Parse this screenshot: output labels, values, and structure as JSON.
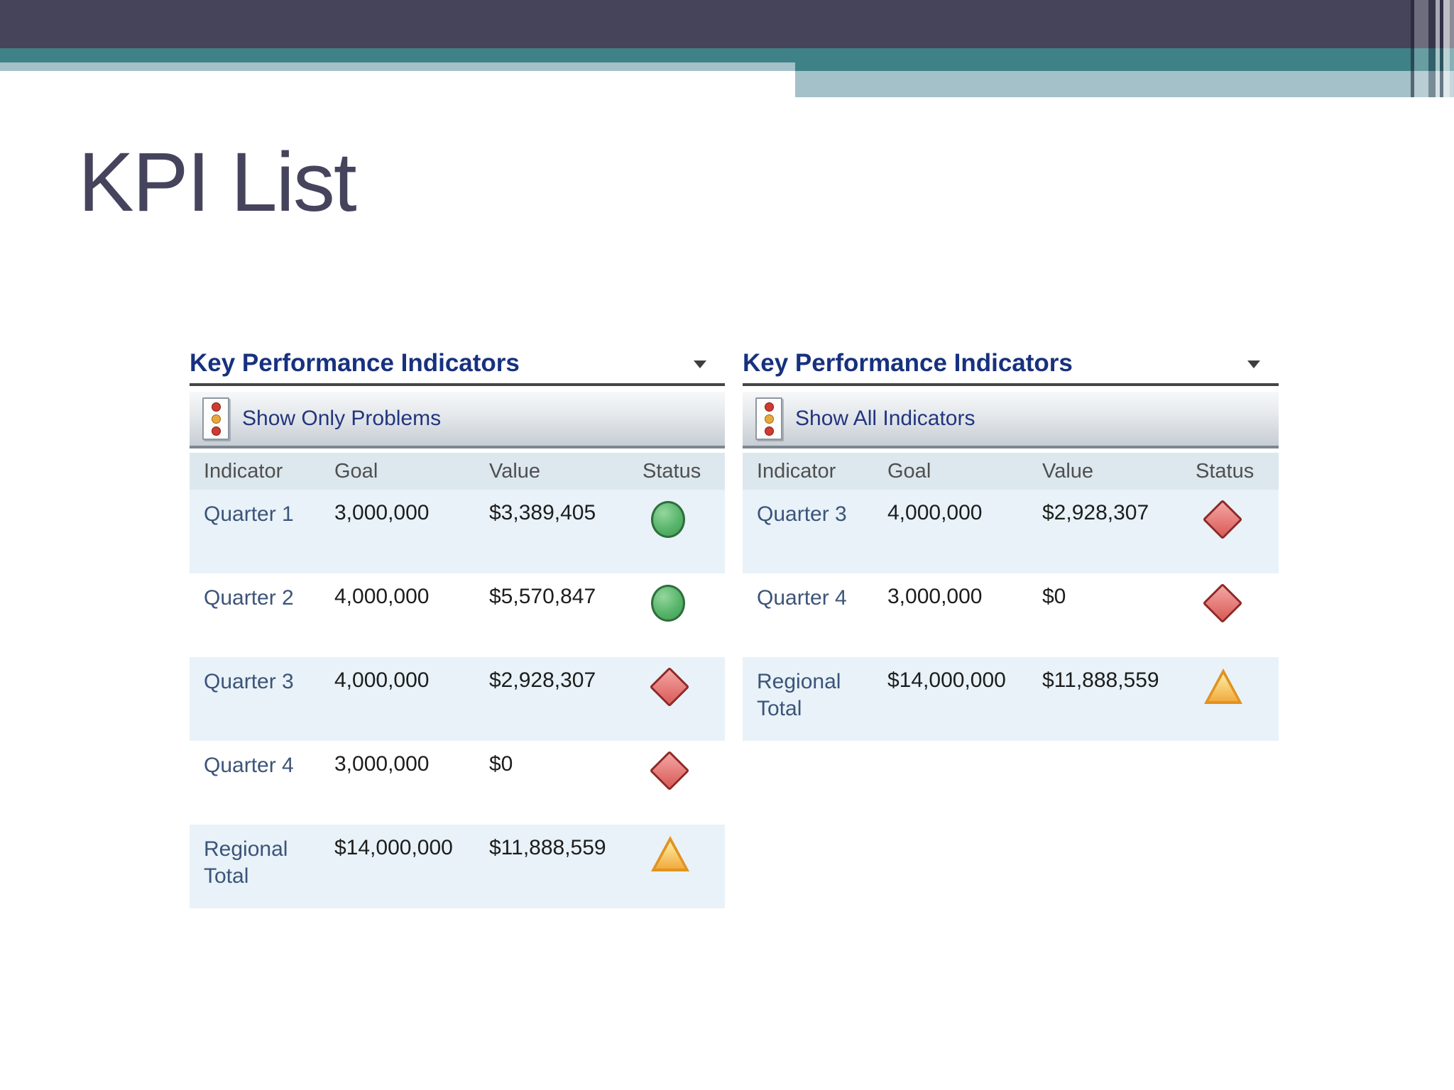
{
  "slide": {
    "title": "KPI List"
  },
  "theme": {
    "top_bar_color": "#46445a",
    "teal_stripe_color": "#3e8287",
    "light_stripe_color": "#a4c0c8",
    "slide_title_color": "#45445c",
    "webpart_title_color": "#17317f",
    "row_highlight_color": "#e8f2f8",
    "header_row_color": "#dce8ee",
    "status_colors": {
      "green_circle": "#58b56b",
      "red_diamond": "#da5a57",
      "yellow_triangle": "#f1ab3e"
    }
  },
  "webparts": [
    {
      "title": "Key Performance Indicators",
      "menu_arrow": "dropdown",
      "toolbar_label": "Show Only Problems",
      "columns": [
        "Indicator",
        "Goal",
        "Value",
        "Status"
      ],
      "rows": [
        {
          "indicator": "Quarter 1",
          "goal": "3,000,000",
          "value": "$3,389,405",
          "status": "green-circle"
        },
        {
          "indicator": "Quarter 2",
          "goal": "4,000,000",
          "value": "$5,570,847",
          "status": "green-circle"
        },
        {
          "indicator": "Quarter 3",
          "goal": "4,000,000",
          "value": "$2,928,307",
          "status": "red-diamond"
        },
        {
          "indicator": "Quarter 4",
          "goal": "3,000,000",
          "value": "$0",
          "status": "red-diamond"
        },
        {
          "indicator": "Regional Total",
          "goal": "$14,000,000",
          "value": "$11,888,559",
          "status": "yellow-triangle"
        }
      ]
    },
    {
      "title": "Key Performance Indicators",
      "menu_arrow": "dropdown",
      "toolbar_label": "Show All Indicators",
      "columns": [
        "Indicator",
        "Goal",
        "Value",
        "Status"
      ],
      "rows": [
        {
          "indicator": "Quarter 3",
          "goal": "4,000,000",
          "value": "$2,928,307",
          "status": "red-diamond"
        },
        {
          "indicator": "Quarter 4",
          "goal": "3,000,000",
          "value": "$0",
          "status": "red-diamond"
        },
        {
          "indicator": "Regional Total",
          "goal": "$14,000,000",
          "value": "$11,888,559",
          "status": "yellow-triangle"
        }
      ]
    }
  ]
}
